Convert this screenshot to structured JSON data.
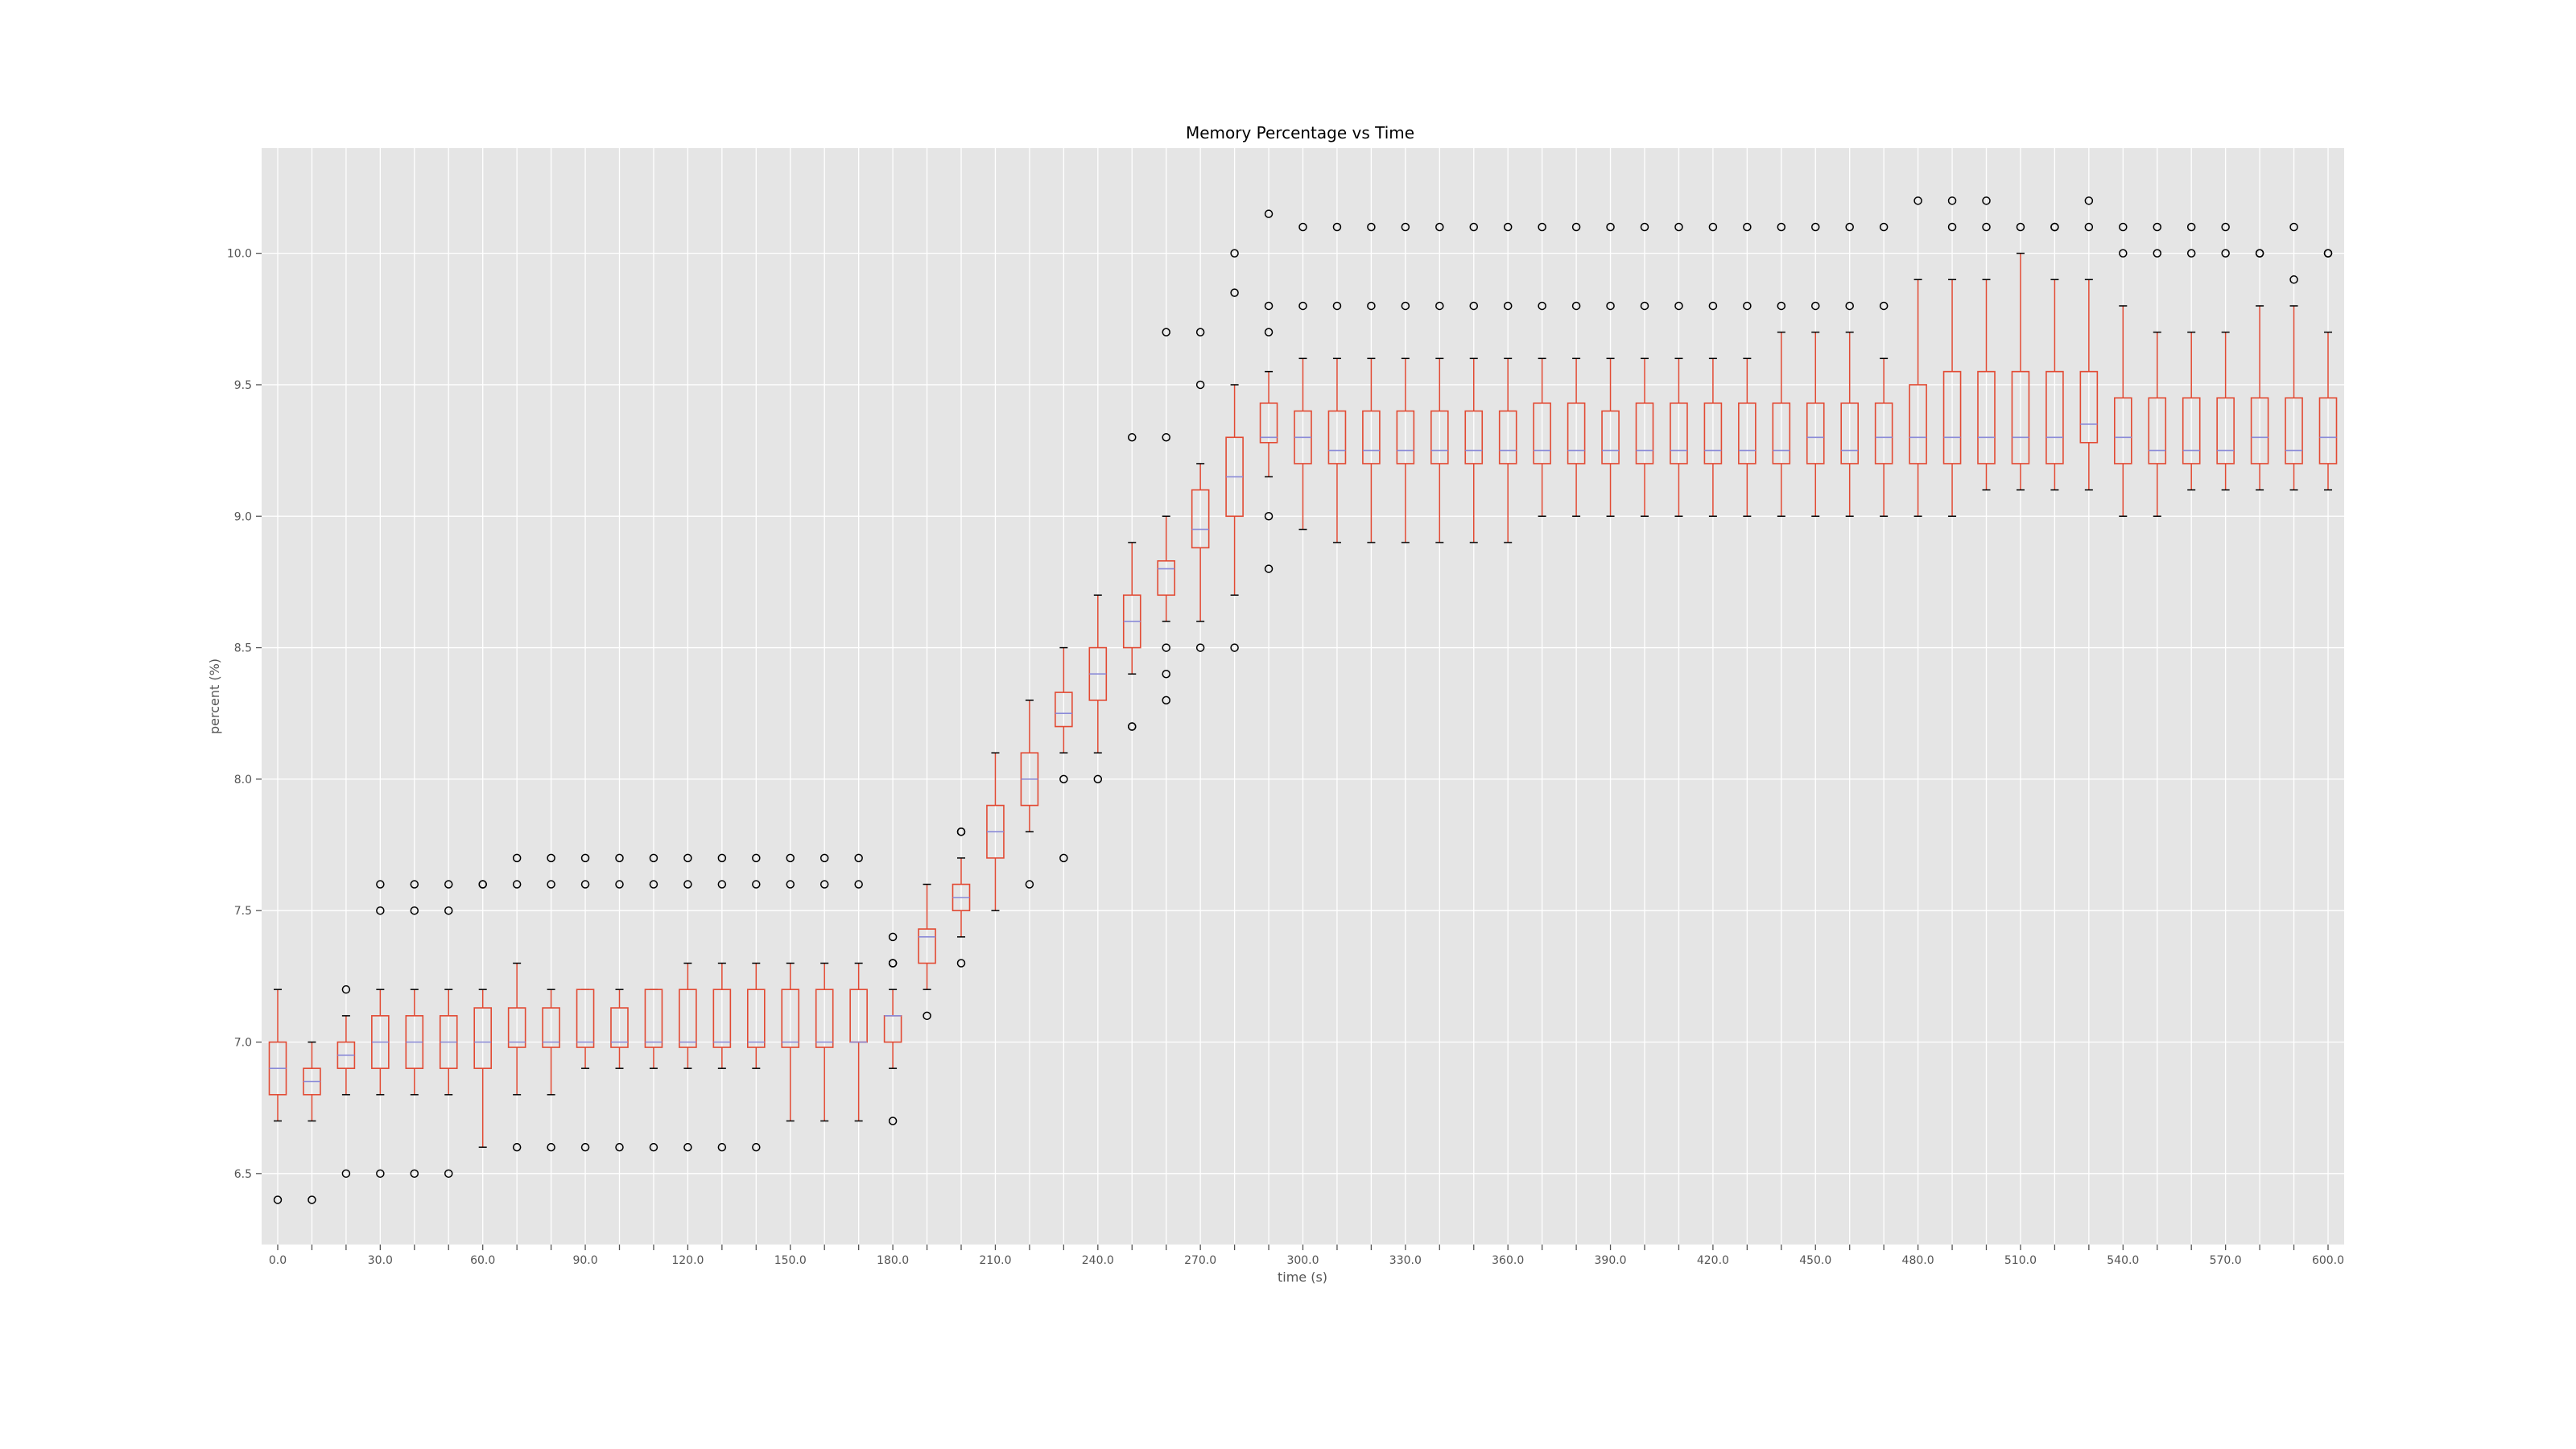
{
  "chart_data": {
    "type": "box",
    "title": "Memory Percentage vs Time",
    "xlabel": "time (s)",
    "ylabel": "percent (%)",
    "ylim": [
      6.23,
      10.4
    ],
    "yticks": [
      6.5,
      7.0,
      7.5,
      8.0,
      8.5,
      9.0,
      9.5,
      10.0
    ],
    "xtick_labels": [
      "0.0",
      "30.0",
      "60.0",
      "90.0",
      "120.0",
      "150.0",
      "180.0",
      "210.0",
      "240.0",
      "270.0",
      "300.0",
      "330.0",
      "360.0",
      "390.0",
      "420.0",
      "450.0",
      "480.0",
      "510.0",
      "540.0",
      "570.0",
      "600.0"
    ],
    "grid": true,
    "colors": {
      "background": "#e5e5e5",
      "grid": "#ffffff",
      "box": "#e24a33",
      "median": "#8a8ad8",
      "whisker": "#e24a33",
      "cap": "#000000",
      "flier": "#000000"
    },
    "boxes": [
      {
        "x": 0,
        "q1": 6.8,
        "med": 6.9,
        "q3": 7.0,
        "lo": 6.7,
        "hi": 7.2,
        "fliers": [
          6.4
        ]
      },
      {
        "x": 10,
        "q1": 6.8,
        "med": 6.85,
        "q3": 6.9,
        "lo": 6.7,
        "hi": 7.0,
        "fliers": [
          6.4
        ]
      },
      {
        "x": 20,
        "q1": 6.9,
        "med": 6.95,
        "q3": 7.0,
        "lo": 6.8,
        "hi": 7.1,
        "fliers": [
          7.2,
          6.5
        ]
      },
      {
        "x": 30,
        "q1": 6.9,
        "med": 7.0,
        "q3": 7.1,
        "lo": 6.8,
        "hi": 7.2,
        "fliers": [
          7.6,
          7.5,
          6.5
        ]
      },
      {
        "x": 40,
        "q1": 6.9,
        "med": 7.0,
        "q3": 7.1,
        "lo": 6.8,
        "hi": 7.2,
        "fliers": [
          7.6,
          7.5,
          6.5
        ]
      },
      {
        "x": 50,
        "q1": 6.9,
        "med": 7.0,
        "q3": 7.1,
        "lo": 6.8,
        "hi": 7.2,
        "fliers": [
          7.6,
          7.5,
          6.5
        ]
      },
      {
        "x": 60,
        "q1": 6.9,
        "med": 7.0,
        "q3": 7.13,
        "lo": 6.6,
        "hi": 7.2,
        "fliers": [
          7.6,
          7.6
        ]
      },
      {
        "x": 70,
        "q1": 6.98,
        "med": 7.0,
        "q3": 7.13,
        "lo": 6.8,
        "hi": 7.3,
        "fliers": [
          7.7,
          7.6,
          6.6
        ]
      },
      {
        "x": 80,
        "q1": 6.98,
        "med": 7.0,
        "q3": 7.13,
        "lo": 6.8,
        "hi": 7.2,
        "fliers": [
          7.7,
          7.6,
          6.6
        ]
      },
      {
        "x": 90,
        "q1": 6.98,
        "med": 7.0,
        "q3": 7.2,
        "lo": 6.9,
        "hi": 7.2,
        "fliers": [
          7.7,
          7.6,
          6.6
        ]
      },
      {
        "x": 100,
        "q1": 6.98,
        "med": 7.0,
        "q3": 7.13,
        "lo": 6.9,
        "hi": 7.2,
        "fliers": [
          7.7,
          7.6,
          6.6
        ]
      },
      {
        "x": 110,
        "q1": 6.98,
        "med": 7.0,
        "q3": 7.2,
        "lo": 6.9,
        "hi": 7.2,
        "fliers": [
          7.7,
          7.6,
          6.6
        ]
      },
      {
        "x": 120,
        "q1": 6.98,
        "med": 7.0,
        "q3": 7.2,
        "lo": 6.9,
        "hi": 7.3,
        "fliers": [
          7.7,
          7.6,
          6.6
        ]
      },
      {
        "x": 130,
        "q1": 6.98,
        "med": 7.0,
        "q3": 7.2,
        "lo": 6.9,
        "hi": 7.3,
        "fliers": [
          7.7,
          7.6,
          6.6
        ]
      },
      {
        "x": 140,
        "q1": 6.98,
        "med": 7.0,
        "q3": 7.2,
        "lo": 6.9,
        "hi": 7.3,
        "fliers": [
          7.7,
          7.6,
          6.6
        ]
      },
      {
        "x": 150,
        "q1": 6.98,
        "med": 7.0,
        "q3": 7.2,
        "lo": 6.7,
        "hi": 7.3,
        "fliers": [
          7.7,
          7.6
        ]
      },
      {
        "x": 160,
        "q1": 6.98,
        "med": 7.0,
        "q3": 7.2,
        "lo": 6.7,
        "hi": 7.3,
        "fliers": [
          7.7,
          7.6
        ]
      },
      {
        "x": 170,
        "q1": 7.0,
        "med": 7.0,
        "q3": 7.2,
        "lo": 6.7,
        "hi": 7.3,
        "fliers": [
          7.7,
          7.6
        ]
      },
      {
        "x": 180,
        "q1": 7.0,
        "med": 7.1,
        "q3": 7.1,
        "lo": 6.9,
        "hi": 7.2,
        "fliers": [
          7.4,
          7.3,
          7.3,
          6.7
        ]
      },
      {
        "x": 190,
        "q1": 7.3,
        "med": 7.4,
        "q3": 7.43,
        "lo": 7.2,
        "hi": 7.6,
        "fliers": [
          7.1
        ]
      },
      {
        "x": 200,
        "q1": 7.5,
        "med": 7.55,
        "q3": 7.6,
        "lo": 7.4,
        "hi": 7.7,
        "fliers": [
          7.8,
          7.8,
          7.3
        ]
      },
      {
        "x": 210,
        "q1": 7.7,
        "med": 7.8,
        "q3": 7.9,
        "lo": 7.5,
        "hi": 8.1,
        "fliers": []
      },
      {
        "x": 220,
        "q1": 7.9,
        "med": 8.0,
        "q3": 8.1,
        "lo": 7.8,
        "hi": 8.3,
        "fliers": [
          7.6
        ]
      },
      {
        "x": 230,
        "q1": 8.2,
        "med": 8.25,
        "q3": 8.33,
        "lo": 8.1,
        "hi": 8.5,
        "fliers": [
          8.0,
          7.7
        ]
      },
      {
        "x": 240,
        "q1": 8.3,
        "med": 8.4,
        "q3": 8.5,
        "lo": 8.1,
        "hi": 8.7,
        "fliers": [
          8.0
        ]
      },
      {
        "x": 250,
        "q1": 8.5,
        "med": 8.6,
        "q3": 8.7,
        "lo": 8.4,
        "hi": 8.9,
        "fliers": [
          9.3,
          8.2,
          8.2
        ]
      },
      {
        "x": 260,
        "q1": 8.7,
        "med": 8.8,
        "q3": 8.83,
        "lo": 8.6,
        "hi": 9.0,
        "fliers": [
          9.7,
          9.3,
          8.5,
          8.4,
          8.3
        ]
      },
      {
        "x": 270,
        "q1": 8.88,
        "med": 8.95,
        "q3": 9.1,
        "lo": 8.6,
        "hi": 9.2,
        "fliers": [
          9.7,
          9.5,
          8.5
        ]
      },
      {
        "x": 280,
        "q1": 9.0,
        "med": 9.15,
        "q3": 9.3,
        "lo": 8.7,
        "hi": 9.5,
        "fliers": [
          10.0,
          9.85,
          8.5
        ]
      },
      {
        "x": 290,
        "q1": 9.28,
        "med": 9.3,
        "q3": 9.43,
        "lo": 9.15,
        "hi": 9.55,
        "fliers": [
          10.15,
          9.8,
          9.7,
          9.0,
          8.8
        ]
      },
      {
        "x": 300,
        "q1": 9.2,
        "med": 9.3,
        "q3": 9.4,
        "lo": 8.95,
        "hi": 9.6,
        "fliers": [
          10.1,
          9.8
        ]
      },
      {
        "x": 310,
        "q1": 9.2,
        "med": 9.25,
        "q3": 9.4,
        "lo": 8.9,
        "hi": 9.6,
        "fliers": [
          10.1,
          9.8
        ]
      },
      {
        "x": 320,
        "q1": 9.2,
        "med": 9.25,
        "q3": 9.4,
        "lo": 8.9,
        "hi": 9.6,
        "fliers": [
          10.1,
          9.8
        ]
      },
      {
        "x": 330,
        "q1": 9.2,
        "med": 9.25,
        "q3": 9.4,
        "lo": 8.9,
        "hi": 9.6,
        "fliers": [
          10.1,
          9.8
        ]
      },
      {
        "x": 340,
        "q1": 9.2,
        "med": 9.25,
        "q3": 9.4,
        "lo": 8.9,
        "hi": 9.6,
        "fliers": [
          10.1,
          9.8
        ]
      },
      {
        "x": 350,
        "q1": 9.2,
        "med": 9.25,
        "q3": 9.4,
        "lo": 8.9,
        "hi": 9.6,
        "fliers": [
          10.1,
          9.8
        ]
      },
      {
        "x": 360,
        "q1": 9.2,
        "med": 9.25,
        "q3": 9.4,
        "lo": 8.9,
        "hi": 9.6,
        "fliers": [
          10.1,
          9.8
        ]
      },
      {
        "x": 370,
        "q1": 9.2,
        "med": 9.25,
        "q3": 9.43,
        "lo": 9.0,
        "hi": 9.6,
        "fliers": [
          10.1,
          9.8
        ]
      },
      {
        "x": 380,
        "q1": 9.2,
        "med": 9.25,
        "q3": 9.43,
        "lo": 9.0,
        "hi": 9.6,
        "fliers": [
          10.1,
          9.8
        ]
      },
      {
        "x": 390,
        "q1": 9.2,
        "med": 9.25,
        "q3": 9.4,
        "lo": 9.0,
        "hi": 9.6,
        "fliers": [
          10.1,
          9.8
        ]
      },
      {
        "x": 400,
        "q1": 9.2,
        "med": 9.25,
        "q3": 9.43,
        "lo": 9.0,
        "hi": 9.6,
        "fliers": [
          10.1,
          9.8
        ]
      },
      {
        "x": 410,
        "q1": 9.2,
        "med": 9.25,
        "q3": 9.43,
        "lo": 9.0,
        "hi": 9.6,
        "fliers": [
          10.1,
          9.8
        ]
      },
      {
        "x": 420,
        "q1": 9.2,
        "med": 9.25,
        "q3": 9.43,
        "lo": 9.0,
        "hi": 9.6,
        "fliers": [
          10.1,
          9.8
        ]
      },
      {
        "x": 430,
        "q1": 9.2,
        "med": 9.25,
        "q3": 9.43,
        "lo": 9.0,
        "hi": 9.6,
        "fliers": [
          10.1,
          9.8
        ]
      },
      {
        "x": 440,
        "q1": 9.2,
        "med": 9.25,
        "q3": 9.43,
        "lo": 9.0,
        "hi": 9.7,
        "fliers": [
          10.1,
          9.8
        ]
      },
      {
        "x": 450,
        "q1": 9.2,
        "med": 9.3,
        "q3": 9.43,
        "lo": 9.0,
        "hi": 9.7,
        "fliers": [
          10.1,
          9.8
        ]
      },
      {
        "x": 460,
        "q1": 9.2,
        "med": 9.25,
        "q3": 9.43,
        "lo": 9.0,
        "hi": 9.7,
        "fliers": [
          10.1,
          9.8
        ]
      },
      {
        "x": 470,
        "q1": 9.2,
        "med": 9.3,
        "q3": 9.43,
        "lo": 9.0,
        "hi": 9.6,
        "fliers": [
          10.1,
          9.8
        ]
      },
      {
        "x": 480,
        "q1": 9.2,
        "med": 9.3,
        "q3": 9.5,
        "lo": 9.0,
        "hi": 9.9,
        "fliers": [
          10.2
        ]
      },
      {
        "x": 490,
        "q1": 9.2,
        "med": 9.3,
        "q3": 9.55,
        "lo": 9.0,
        "hi": 9.9,
        "fliers": [
          10.2,
          10.1
        ]
      },
      {
        "x": 500,
        "q1": 9.2,
        "med": 9.3,
        "q3": 9.55,
        "lo": 9.1,
        "hi": 9.9,
        "fliers": [
          10.2,
          10.1
        ]
      },
      {
        "x": 510,
        "q1": 9.2,
        "med": 9.3,
        "q3": 9.55,
        "lo": 9.1,
        "hi": 10.0,
        "fliers": [
          10.1
        ]
      },
      {
        "x": 520,
        "q1": 9.2,
        "med": 9.3,
        "q3": 9.55,
        "lo": 9.1,
        "hi": 9.9,
        "fliers": [
          10.1,
          10.1
        ]
      },
      {
        "x": 530,
        "q1": 9.28,
        "med": 9.35,
        "q3": 9.55,
        "lo": 9.1,
        "hi": 9.9,
        "fliers": [
          10.2,
          10.1
        ]
      },
      {
        "x": 540,
        "q1": 9.2,
        "med": 9.3,
        "q3": 9.45,
        "lo": 9.0,
        "hi": 9.8,
        "fliers": [
          10.1,
          10.0
        ]
      },
      {
        "x": 550,
        "q1": 9.2,
        "med": 9.25,
        "q3": 9.45,
        "lo": 9.0,
        "hi": 9.7,
        "fliers": [
          10.1,
          10.0
        ]
      },
      {
        "x": 560,
        "q1": 9.2,
        "med": 9.25,
        "q3": 9.45,
        "lo": 9.1,
        "hi": 9.7,
        "fliers": [
          10.1,
          10.0
        ]
      },
      {
        "x": 570,
        "q1": 9.2,
        "med": 9.25,
        "q3": 9.45,
        "lo": 9.1,
        "hi": 9.7,
        "fliers": [
          10.1,
          10.0
        ]
      },
      {
        "x": 580,
        "q1": 9.2,
        "med": 9.3,
        "q3": 9.45,
        "lo": 9.1,
        "hi": 9.8,
        "fliers": [
          10.0,
          10.0
        ]
      },
      {
        "x": 590,
        "q1": 9.2,
        "med": 9.25,
        "q3": 9.45,
        "lo": 9.1,
        "hi": 9.8,
        "fliers": [
          10.1,
          9.9
        ]
      },
      {
        "x": 600,
        "q1": 9.2,
        "med": 9.3,
        "q3": 9.45,
        "lo": 9.1,
        "hi": 9.7,
        "fliers": [
          10.0,
          10.0
        ]
      }
    ]
  }
}
